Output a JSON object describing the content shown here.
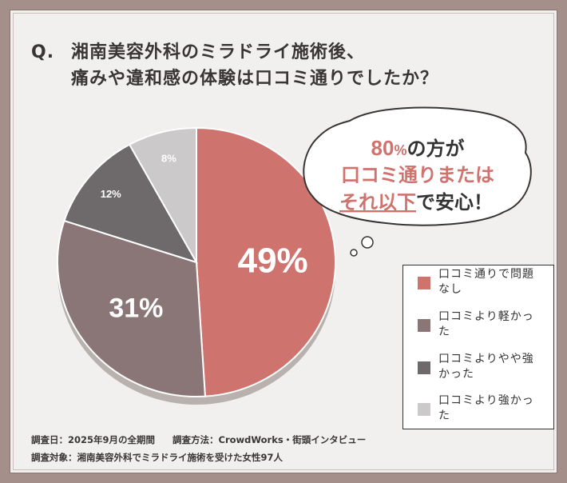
{
  "title": {
    "q_mark": "Q.",
    "line1": "湘南美容外科のミラドライ施術後、",
    "line2": "痛みや違和感の体験は口コミ通りでしたか？"
  },
  "bubble": {
    "percent": "80",
    "pct_sign": "%",
    "suffix1": "の方が",
    "line2": "口コミ通りまたは",
    "line3_red": "それ以下",
    "line3_rest": "で安心！"
  },
  "chart_data": {
    "type": "pie",
    "categories": [
      "口コミ通りで問題なし",
      "口コミより軽かった",
      "口コミよりやや強かった",
      "口コミより強かった"
    ],
    "values": [
      49,
      31,
      12,
      8
    ],
    "labels": [
      "49%",
      "31%",
      "12%",
      "8%"
    ],
    "colors": [
      "#cf736f",
      "#8a7676",
      "#6e6a6b",
      "#cbc9c9"
    ],
    "legend_position": "right"
  },
  "legend": {
    "items": [
      {
        "label": "口コミ通りで問題なし",
        "color": "#cf736f"
      },
      {
        "label": "口コミより軽かった",
        "color": "#8a7676"
      },
      {
        "label": "口コミよりやや強かった",
        "color": "#6e6a6b"
      },
      {
        "label": "口コミより強かった",
        "color": "#cbc9c9"
      }
    ]
  },
  "footer": {
    "date": "調査日：2025年9月の全期間",
    "method": "調査方法：CrowdWorks・街頭インタビュー",
    "target": "調査対象：湘南美容外科でミラドライ施術を受けた女性97人"
  }
}
